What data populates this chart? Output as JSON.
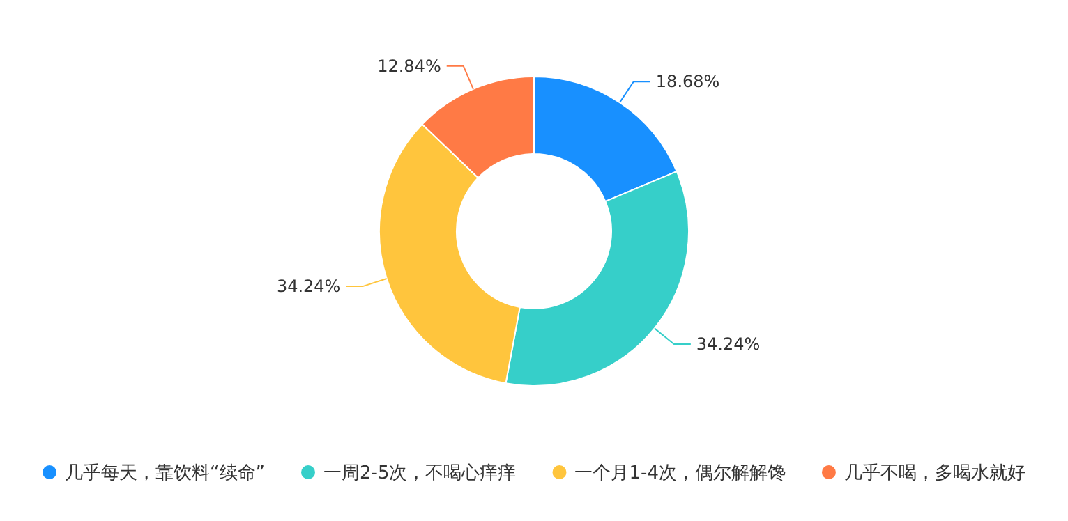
{
  "chart_data": {
    "type": "donut",
    "categories": [
      "几乎每天，靠饮料“续命”",
      "一周2-5次，不喝心痒痒",
      "一个月1-4次，偶尔解解馋",
      "几乎不喝，多喝水就好"
    ],
    "values": [
      18.68,
      34.24,
      34.24,
      12.84
    ],
    "value_labels": [
      "18.68%",
      "34.24%",
      "34.24%",
      "12.84%"
    ],
    "colors": [
      "#1890ff",
      "#36cfc9",
      "#ffc53d",
      "#ff7a45"
    ],
    "legend": "bottom"
  }
}
